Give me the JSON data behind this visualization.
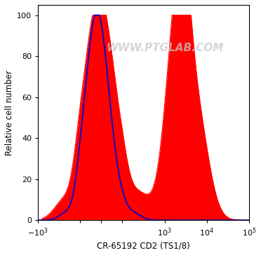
{
  "title": "WWW.PTGLAB.COM",
  "xlabel": "CR-65192 CD2 (TS1/8)",
  "ylabel": "Relative cell number",
  "ylim": [
    0,
    105
  ],
  "yticks": [
    0,
    20,
    40,
    60,
    80,
    100
  ],
  "xlim_min": -1000,
  "xlim_max": 100000,
  "linthresh": 100,
  "background_color": "#ffffff",
  "isotype_color": "#0000cc",
  "antibody_color": "#ff0000",
  "watermark_color": "#c8c8c8",
  "watermark_alpha": 0.75,
  "watermark_fontsize": 11
}
